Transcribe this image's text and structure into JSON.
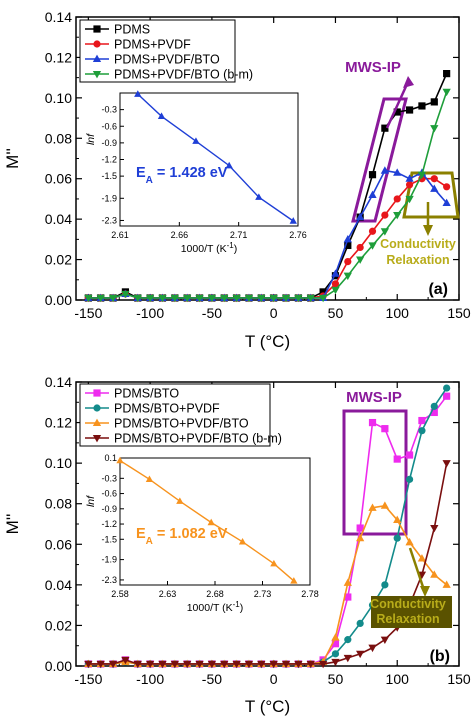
{
  "chart_data": [
    {
      "panel": "(a)",
      "type": "line",
      "xlabel": "T",
      "xlabel_unit": "(°C)",
      "ylabel": "M''",
      "xlim": [
        -160,
        150
      ],
      "ylim": [
        0.0,
        0.14
      ],
      "xticks": [
        -150,
        -100,
        -50,
        0,
        50,
        100,
        150
      ],
      "yticks": [
        0.0,
        0.02,
        0.04,
        0.06,
        0.08,
        0.1,
        0.12,
        0.14
      ],
      "ytick_labels": [
        "0.00",
        "0.02",
        "0.04",
        "0.06",
        "0.08",
        "0.10",
        "0.12",
        "0.14"
      ],
      "legend_position": "top-left",
      "series": [
        {
          "name": "PDMS",
          "color": "#000000",
          "marker": "square",
          "x": [
            -150,
            -140,
            -130,
            -120,
            -110,
            -100,
            -90,
            -80,
            -70,
            -60,
            -50,
            -40,
            -30,
            -20,
            -10,
            0,
            10,
            20,
            30,
            40,
            50,
            60,
            70,
            80,
            90,
            100,
            110,
            120,
            130,
            140
          ],
          "y": [
            0.001,
            0.001,
            0.001,
            0.004,
            0.001,
            0.001,
            0.001,
            0.001,
            0.001,
            0.001,
            0.001,
            0.001,
            0.001,
            0.001,
            0.001,
            0.001,
            0.001,
            0.001,
            0.001,
            0.004,
            0.012,
            0.027,
            0.041,
            0.062,
            0.085,
            0.093,
            0.094,
            0.096,
            0.098,
            0.112
          ]
        },
        {
          "name": "PDMS+PVDF",
          "color": "#e8161b",
          "marker": "circle",
          "x": [
            -150,
            -140,
            -130,
            -120,
            -110,
            -100,
            -90,
            -80,
            -70,
            -60,
            -50,
            -40,
            -30,
            -20,
            -10,
            0,
            10,
            20,
            30,
            40,
            50,
            60,
            70,
            80,
            90,
            100,
            110,
            120,
            130,
            140
          ],
          "y": [
            0.001,
            0.001,
            0.001,
            0.003,
            0.001,
            0.001,
            0.001,
            0.001,
            0.001,
            0.001,
            0.001,
            0.001,
            0.001,
            0.001,
            0.001,
            0.001,
            0.001,
            0.001,
            0.001,
            0.002,
            0.008,
            0.019,
            0.026,
            0.034,
            0.042,
            0.05,
            0.057,
            0.06,
            0.06,
            0.056
          ]
        },
        {
          "name": "PDMS+PVDF/BTO",
          "color": "#1f3fd6",
          "marker": "triangle-up",
          "x": [
            -150,
            -140,
            -130,
            -120,
            -110,
            -100,
            -90,
            -80,
            -70,
            -60,
            -50,
            -40,
            -30,
            -20,
            -10,
            0,
            10,
            20,
            30,
            40,
            50,
            60,
            70,
            80,
            90,
            100,
            110,
            120,
            130,
            140
          ],
          "y": [
            0.001,
            0.001,
            0.001,
            0.003,
            0.001,
            0.001,
            0.001,
            0.001,
            0.001,
            0.001,
            0.001,
            0.001,
            0.001,
            0.001,
            0.001,
            0.001,
            0.001,
            0.001,
            0.001,
            0.001,
            0.013,
            0.03,
            0.041,
            0.052,
            0.064,
            0.063,
            0.06,
            0.063,
            0.055,
            0.048
          ]
        },
        {
          "name": "PDMS+PVDF/BTO (b-m)",
          "color": "#1e9e3a",
          "marker": "triangle-down",
          "x": [
            -150,
            -140,
            -130,
            -120,
            -110,
            -100,
            -90,
            -80,
            -70,
            -60,
            -50,
            -40,
            -30,
            -20,
            -10,
            0,
            10,
            20,
            30,
            40,
            50,
            60,
            70,
            80,
            90,
            100,
            110,
            120,
            130,
            140
          ],
          "y": [
            0.001,
            0.001,
            0.001,
            0.003,
            0.001,
            0.001,
            0.001,
            0.001,
            0.001,
            0.001,
            0.001,
            0.001,
            0.001,
            0.001,
            0.001,
            0.001,
            0.001,
            0.001,
            0.001,
            0.001,
            0.005,
            0.012,
            0.02,
            0.027,
            0.034,
            0.042,
            0.05,
            0.062,
            0.085,
            0.103
          ]
        }
      ],
      "annotations": {
        "mws_label": "MWS-IP",
        "conductivity_label": "Conductivity",
        "relaxation_label": "Relaxation",
        "mws_color": "#8a1a9b",
        "conductivity_color": "#8b8000",
        "panel_label": "(a)"
      },
      "inset": {
        "type": "line",
        "xlabel": "1000/T (K",
        "xlabel_sup": "-1",
        "xlabel_end": ")",
        "ylabel": "lnf",
        "xlim": [
          2.61,
          2.76
        ],
        "ylim": [
          -2.4,
          0.0
        ],
        "xticks": [
          2.61,
          2.66,
          2.71,
          2.76
        ],
        "xtick_labels": [
          "2.61",
          "2.66",
          "2.71",
          "2.76"
        ],
        "yticks": [
          -0.3,
          -0.6,
          -0.9,
          -1.2,
          -1.5,
          -1.9,
          -2.3
        ],
        "ytick_labels": [
          "-0.3",
          "-0.6",
          "-0.9",
          "-1.2",
          "-1.5",
          "-1.9",
          "-2.3"
        ],
        "color": "#1f3fd6",
        "marker": "triangle-up",
        "x": [
          2.625,
          2.645,
          2.674,
          2.702,
          2.727,
          2.756
        ],
        "y": [
          -0.02,
          -0.42,
          -0.87,
          -1.31,
          -1.88,
          -2.31
        ],
        "energy_label": "E",
        "energy_sub": "A",
        "energy_value": " = 1.428 eV"
      }
    },
    {
      "panel": "(b)",
      "type": "line",
      "xlabel": "T",
      "xlabel_unit": "(°C)",
      "ylabel": "M''",
      "xlim": [
        -160,
        150
      ],
      "ylim": [
        0.0,
        0.14
      ],
      "xticks": [
        -150,
        -100,
        -50,
        0,
        50,
        100,
        150
      ],
      "yticks": [
        0.0,
        0.02,
        0.04,
        0.06,
        0.08,
        0.1,
        0.12,
        0.14
      ],
      "ytick_labels": [
        "0.00",
        "0.02",
        "0.04",
        "0.06",
        "0.08",
        "0.10",
        "0.12",
        "0.14"
      ],
      "legend_position": "top-left",
      "series": [
        {
          "name": "PDMS/BTO",
          "color": "#ee2bee",
          "marker": "square",
          "x": [
            -150,
            -140,
            -130,
            -120,
            -110,
            -100,
            -90,
            -80,
            -70,
            -60,
            -50,
            -40,
            -30,
            -20,
            -10,
            0,
            10,
            20,
            30,
            40,
            50,
            60,
            70,
            80,
            90,
            100,
            110,
            120,
            130,
            140
          ],
          "y": [
            0.001,
            0.001,
            0.001,
            0.003,
            0.001,
            0.001,
            0.001,
            0.001,
            0.001,
            0.001,
            0.001,
            0.001,
            0.001,
            0.001,
            0.001,
            0.001,
            0.001,
            0.001,
            0.001,
            0.003,
            0.011,
            0.034,
            0.068,
            0.12,
            0.117,
            0.102,
            0.104,
            0.121,
            0.125,
            0.133
          ]
        },
        {
          "name": "PDMS/BTO+PVDF",
          "color": "#138b8b",
          "marker": "circle",
          "x": [
            -150,
            -140,
            -130,
            -120,
            -110,
            -100,
            -90,
            -80,
            -70,
            -60,
            -50,
            -40,
            -30,
            -20,
            -10,
            0,
            10,
            20,
            30,
            40,
            50,
            60,
            70,
            80,
            90,
            100,
            110,
            120,
            130,
            140
          ],
          "y": [
            0.001,
            0.001,
            0.001,
            0.002,
            0.001,
            0.001,
            0.001,
            0.001,
            0.001,
            0.001,
            0.001,
            0.001,
            0.001,
            0.001,
            0.001,
            0.001,
            0.001,
            0.001,
            0.001,
            0.002,
            0.006,
            0.013,
            0.021,
            0.03,
            0.04,
            0.063,
            0.092,
            0.116,
            0.128,
            0.137
          ]
        },
        {
          "name": "PDMS/BTO+PVDF/BTO",
          "color": "#f7931e",
          "marker": "triangle-up",
          "x": [
            -150,
            -140,
            -130,
            -120,
            -110,
            -100,
            -90,
            -80,
            -70,
            -60,
            -50,
            -40,
            -30,
            -20,
            -10,
            0,
            10,
            20,
            30,
            40,
            50,
            60,
            70,
            80,
            90,
            100,
            110,
            120,
            130,
            140
          ],
          "y": [
            0.001,
            0.001,
            0.001,
            0.002,
            0.001,
            0.001,
            0.001,
            0.001,
            0.001,
            0.001,
            0.001,
            0.001,
            0.001,
            0.001,
            0.001,
            0.001,
            0.001,
            0.001,
            0.001,
            0.002,
            0.014,
            0.041,
            0.063,
            0.078,
            0.079,
            0.072,
            0.061,
            0.053,
            0.045,
            0.04
          ]
        },
        {
          "name": "PDMS/BTO+PVDF/BTO (b-m)",
          "color": "#7a0f0f",
          "marker": "triangle-down",
          "x": [
            -150,
            -140,
            -130,
            -120,
            -110,
            -100,
            -90,
            -80,
            -70,
            -60,
            -50,
            -40,
            -30,
            -20,
            -10,
            0,
            10,
            20,
            30,
            40,
            50,
            60,
            70,
            80,
            90,
            100,
            110,
            120,
            130,
            140
          ],
          "y": [
            0.001,
            0.001,
            0.001,
            0.003,
            0.001,
            0.001,
            0.001,
            0.001,
            0.001,
            0.001,
            0.001,
            0.001,
            0.001,
            0.001,
            0.001,
            0.001,
            0.001,
            0.001,
            0.001,
            0.001,
            0.002,
            0.004,
            0.006,
            0.009,
            0.013,
            0.019,
            0.03,
            0.045,
            0.068,
            0.1
          ]
        }
      ],
      "annotations": {
        "mws_label": "MWS-IP",
        "conductivity_label": "Conductivity",
        "relaxation_label": "Relaxation",
        "mws_color": "#8a1a9b",
        "conductivity_color": "#8b8000",
        "panel_label": "(b)"
      },
      "inset": {
        "type": "line",
        "xlabel": "1000/T (K",
        "xlabel_sup": "-1",
        "xlabel_end": ")",
        "ylabel": "lnf",
        "xlim": [
          2.58,
          2.78
        ],
        "ylim": [
          -2.4,
          0.1
        ],
        "xticks": [
          2.58,
          2.63,
          2.68,
          2.73,
          2.78
        ],
        "xtick_labels": [
          "2.58",
          "2.63",
          "2.68",
          "2.73",
          "2.78"
        ],
        "yticks": [
          0.1,
          -0.3,
          -0.6,
          -0.9,
          -1.2,
          -1.5,
          -1.9,
          -2.3
        ],
        "ytick_labels": [
          "0.1",
          "-0.3",
          "-0.6",
          "-0.9",
          "-1.2",
          "-1.5",
          "-1.9",
          "-2.3"
        ],
        "color": "#f7931e",
        "marker": "triangle-up",
        "x": [
          2.58,
          2.611,
          2.643,
          2.676,
          2.709,
          2.742,
          2.763
        ],
        "y": [
          0.05,
          -0.32,
          -0.75,
          -1.17,
          -1.55,
          -1.98,
          -2.32
        ],
        "energy_label": "E",
        "energy_sub": "A",
        "energy_value": " = 1.082 eV"
      }
    }
  ]
}
